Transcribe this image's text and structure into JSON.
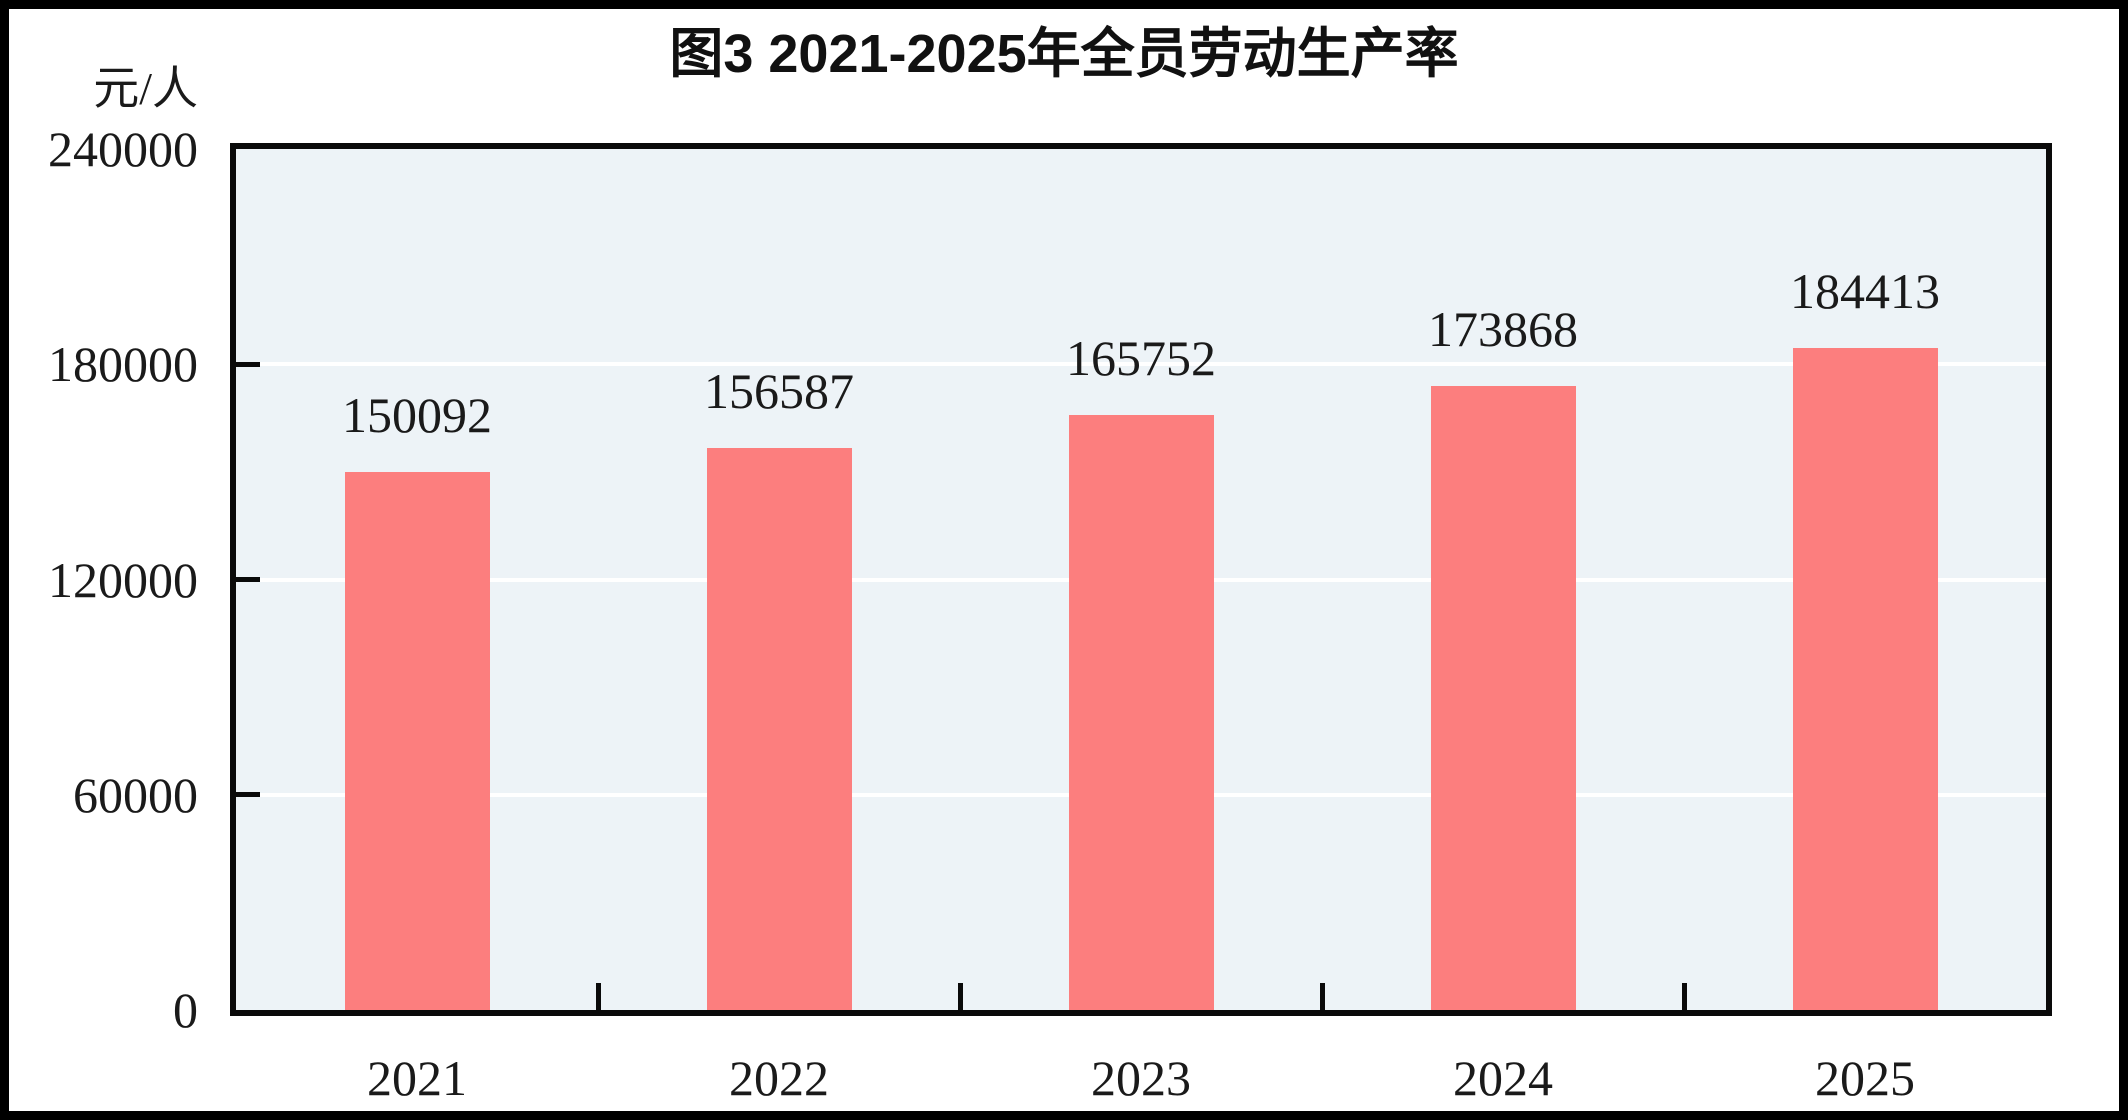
{
  "figure": {
    "title": "图3  2021-2025年全员劳动生产率",
    "unit_label": "元/人"
  },
  "chart_data": {
    "type": "bar",
    "title": "图3  2021-2025年全员劳动生产率",
    "unit_label": "元/人",
    "categories": [
      "2021",
      "2022",
      "2023",
      "2024",
      "2025"
    ],
    "values": [
      150092,
      156587,
      165752,
      173868,
      184413
    ],
    "value_labels": [
      "150092",
      "156587",
      "165752",
      "173868",
      "184413"
    ],
    "xlabel": "",
    "ylabel": "元/人",
    "ylim": [
      0,
      240000
    ],
    "yticks": [
      0,
      60000,
      120000,
      180000,
      240000
    ],
    "ytick_labels": [
      "0",
      "60000",
      "120000",
      "180000",
      "240000"
    ],
    "grid": "horizontal",
    "legend": "none",
    "colors": {
      "bar_fill": "#FC7E7E",
      "plot_background": "#EDF3F7",
      "gridline": "#FFFFFF",
      "axis": "#0A0A0A",
      "text": "#1A1A1A",
      "outer_frame": "#000000"
    }
  }
}
